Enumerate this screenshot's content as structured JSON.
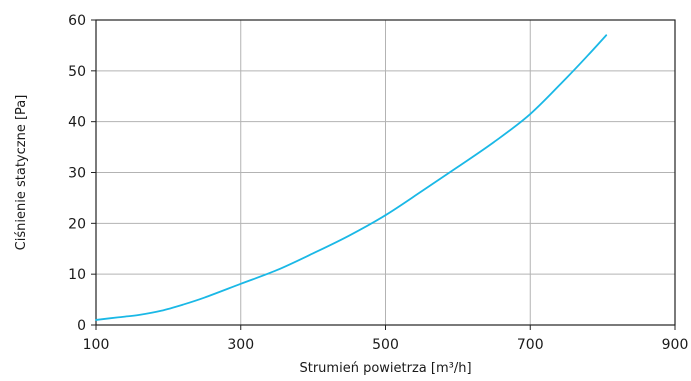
{
  "chart_data": {
    "type": "line",
    "title": "",
    "xlabel": "Strumień powietrza [m³/h]",
    "ylabel": "Ciśnienie statyczne [Pa]",
    "xlim": [
      100,
      900
    ],
    "ylim": [
      0,
      60
    ],
    "x_ticks": [
      100,
      300,
      500,
      700,
      900
    ],
    "y_ticks": [
      0,
      10,
      20,
      30,
      40,
      50,
      60
    ],
    "x_tick_labels": [
      "100",
      "300",
      "500",
      "700",
      "900"
    ],
    "y_tick_labels": [
      "0",
      "10",
      "20",
      "30",
      "40",
      "50",
      "60"
    ],
    "grid": true,
    "series": [
      {
        "color": "#1ab8e6",
        "x": [
          100,
          130,
          160,
          190,
          220,
          250,
          300,
          350,
          400,
          450,
          500,
          550,
          600,
          650,
          700,
          750,
          780,
          805
        ],
        "y": [
          1.0,
          1.5,
          2.0,
          2.8,
          4.0,
          5.4,
          8.1,
          10.8,
          14.1,
          17.6,
          21.6,
          26.3,
          31.1,
          36.0,
          41.5,
          48.6,
          53.1,
          57.0
        ]
      }
    ]
  }
}
